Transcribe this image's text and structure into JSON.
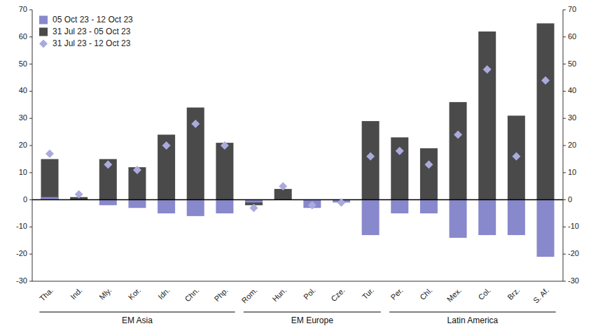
{
  "chart_data": {
    "type": "bar",
    "categories": [
      "Tha.",
      "Ind.",
      "Mly.",
      "Kor.",
      "Idn.",
      "Chn.",
      "Php.",
      "Rom.",
      "Hun.",
      "Pol.",
      "Cze.",
      "Tur.",
      "Per.",
      "Chl.",
      "Mex.",
      "Col.",
      "Brz.",
      "S. Af."
    ],
    "series": [
      {
        "name": "05 Oct 23 - 12 Oct 23",
        "type": "bar",
        "color": "#8888cc",
        "values": [
          1,
          0,
          -2,
          -3,
          -5,
          -6,
          -5,
          -1,
          0,
          -3,
          -1,
          -13,
          -5,
          -5,
          -14,
          -13,
          -13,
          -21
        ]
      },
      {
        "name": "31 Jul 23 - 05 Oct 23",
        "type": "bar",
        "color": "#4a4a4a",
        "values": [
          15,
          1,
          15,
          12,
          24,
          34,
          21,
          -2,
          4,
          0,
          0,
          29,
          23,
          19,
          36,
          62,
          31,
          65
        ]
      },
      {
        "name": "31 Jul 23 - 12 Oct 23",
        "type": "scatter",
        "marker": "diamond",
        "color": "#aaaadd",
        "values": [
          17,
          2,
          13,
          11,
          20,
          28,
          20,
          -3,
          5,
          -2,
          -1,
          16,
          18,
          13,
          24,
          48,
          16,
          44
        ]
      }
    ],
    "groups": [
      {
        "name": "EM Asia",
        "start": 0,
        "end": 6
      },
      {
        "name": "EM Europe",
        "start": 7,
        "end": 11
      },
      {
        "name": "Latin America",
        "start": 12,
        "end": 17
      }
    ],
    "ylim": [
      -30,
      70
    ],
    "yticks": [
      -30,
      -20,
      -10,
      0,
      10,
      20,
      30,
      40,
      50,
      60,
      70
    ],
    "y2lim": [
      -30,
      70
    ],
    "y2ticks": [
      -30,
      -20,
      -10,
      0,
      10,
      20,
      30,
      40,
      50,
      60,
      70
    ],
    "grid": false,
    "legend": "upper-left"
  }
}
